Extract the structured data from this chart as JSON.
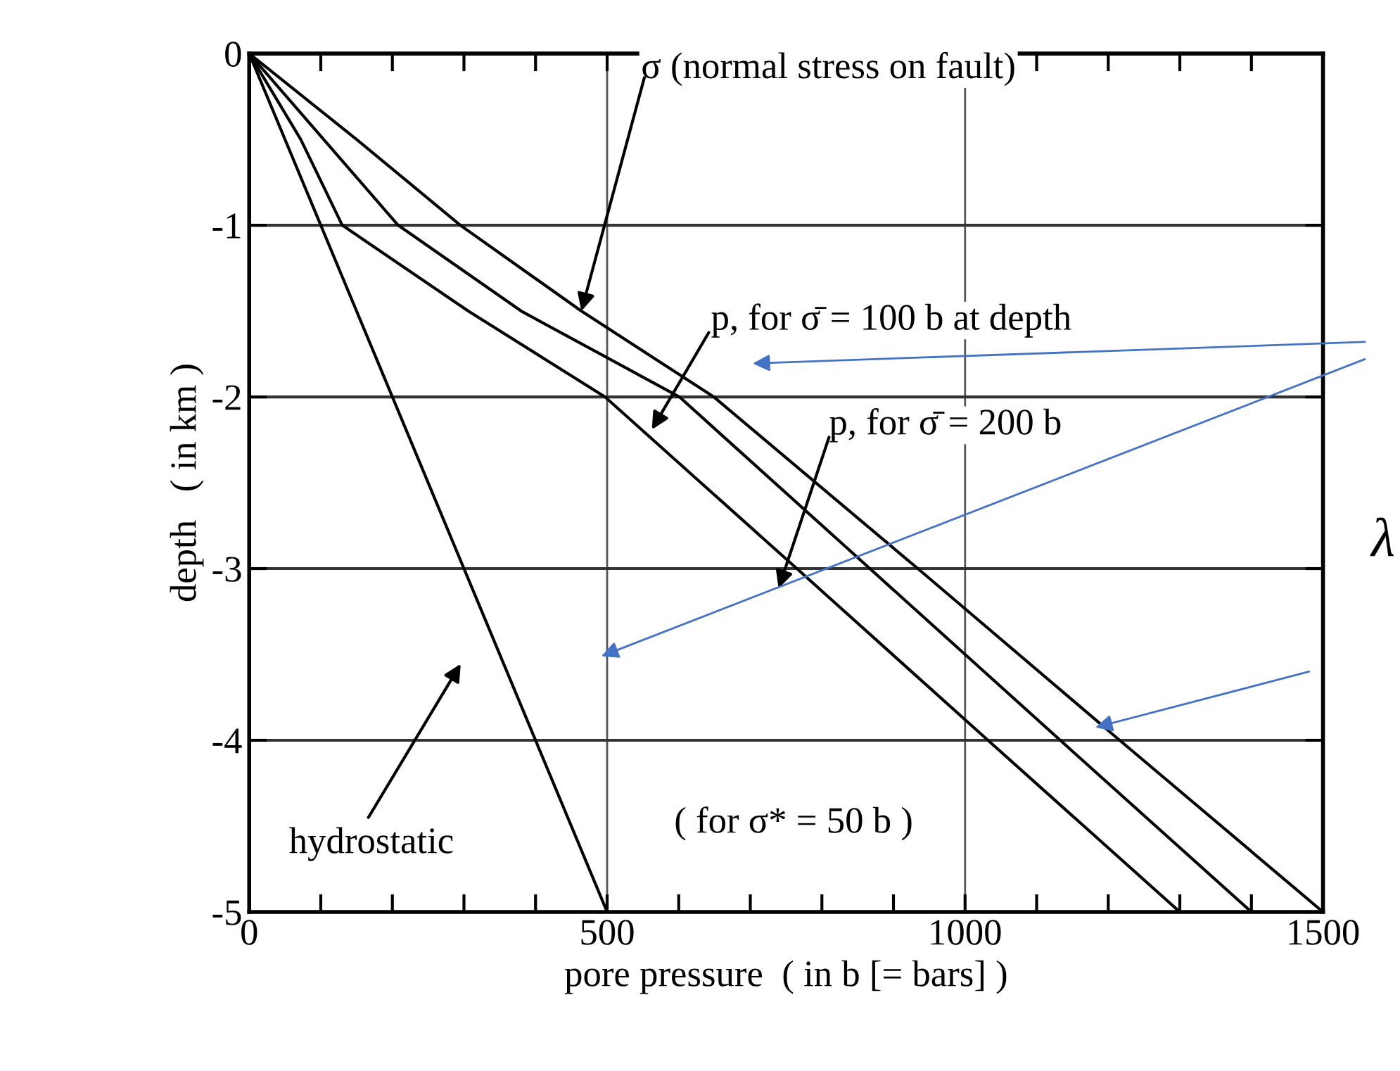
{
  "chart_data": {
    "type": "line",
    "xlabel": "pore pressure  ( in b [= bars] )",
    "ylabel": "depth   ( in km )",
    "series": [
      {
        "color": "#000000",
        "x": [
          0,
          150,
          295,
          464,
          649,
          934,
          1216,
          1500
        ],
        "values": [
          0,
          -0.5,
          -1,
          -1.5,
          -2,
          -3,
          -4,
          -5
        ]
      },
      {
        "color": "#000000",
        "x": [
          0,
          104,
          208,
          380,
          601,
          867,
          1133,
          1400
        ],
        "values": [
          0,
          -0.5,
          -1,
          -1.5,
          -2,
          -3,
          -4,
          -5
        ]
      },
      {
        "color": "#000000",
        "x": [
          0,
          72,
          130,
          306,
          497,
          765,
          1032,
          1300
        ],
        "values": [
          0,
          -0.5,
          -1,
          -1.5,
          -2,
          -3,
          -4,
          -5
        ]
      },
      {
        "color": "#000000",
        "x": [
          0,
          500
        ],
        "values": [
          0,
          -5
        ]
      }
    ],
    "xlim": [
      0,
      1500
    ],
    "ylim": [
      -5,
      0
    ],
    "xticks": [
      0,
      {
        "value": 100,
        "label": null
      },
      {
        "value": 200,
        "label": null
      },
      {
        "value": 300,
        "label": null
      },
      {
        "value": 400,
        "label": null
      },
      500,
      {
        "value": 600,
        "label": null
      },
      {
        "value": 700,
        "label": null
      },
      {
        "value": 800,
        "label": null
      },
      {
        "value": 900,
        "label": null
      },
      1000,
      {
        "value": 1100,
        "label": null
      },
      {
        "value": 1200,
        "label": null
      },
      {
        "value": 1300,
        "label": null
      },
      {
        "value": 1400,
        "label": null
      },
      1500
    ],
    "yticks": [
      {
        "value": -5,
        "label": "-5"
      },
      {
        "value": -4,
        "label": "-4"
      },
      {
        "value": -3,
        "label": "-3"
      },
      {
        "value": -2,
        "label": "-2"
      },
      {
        "value": -1,
        "label": "-1"
      },
      0
    ],
    "grid": true,
    "marker": "none",
    "line_style": "solid",
    "legend": false,
    "annotations": [
      {
        "text": "σ (normal stress on fault)",
        "x": 464,
        "y": -1.5
      },
      "p, for σ̄ = 100 b at depth",
      "p, for σ̄ = 200 b",
      "hydrostatic",
      "( for σ* = 50 b )",
      "λ"
    ]
  }
}
